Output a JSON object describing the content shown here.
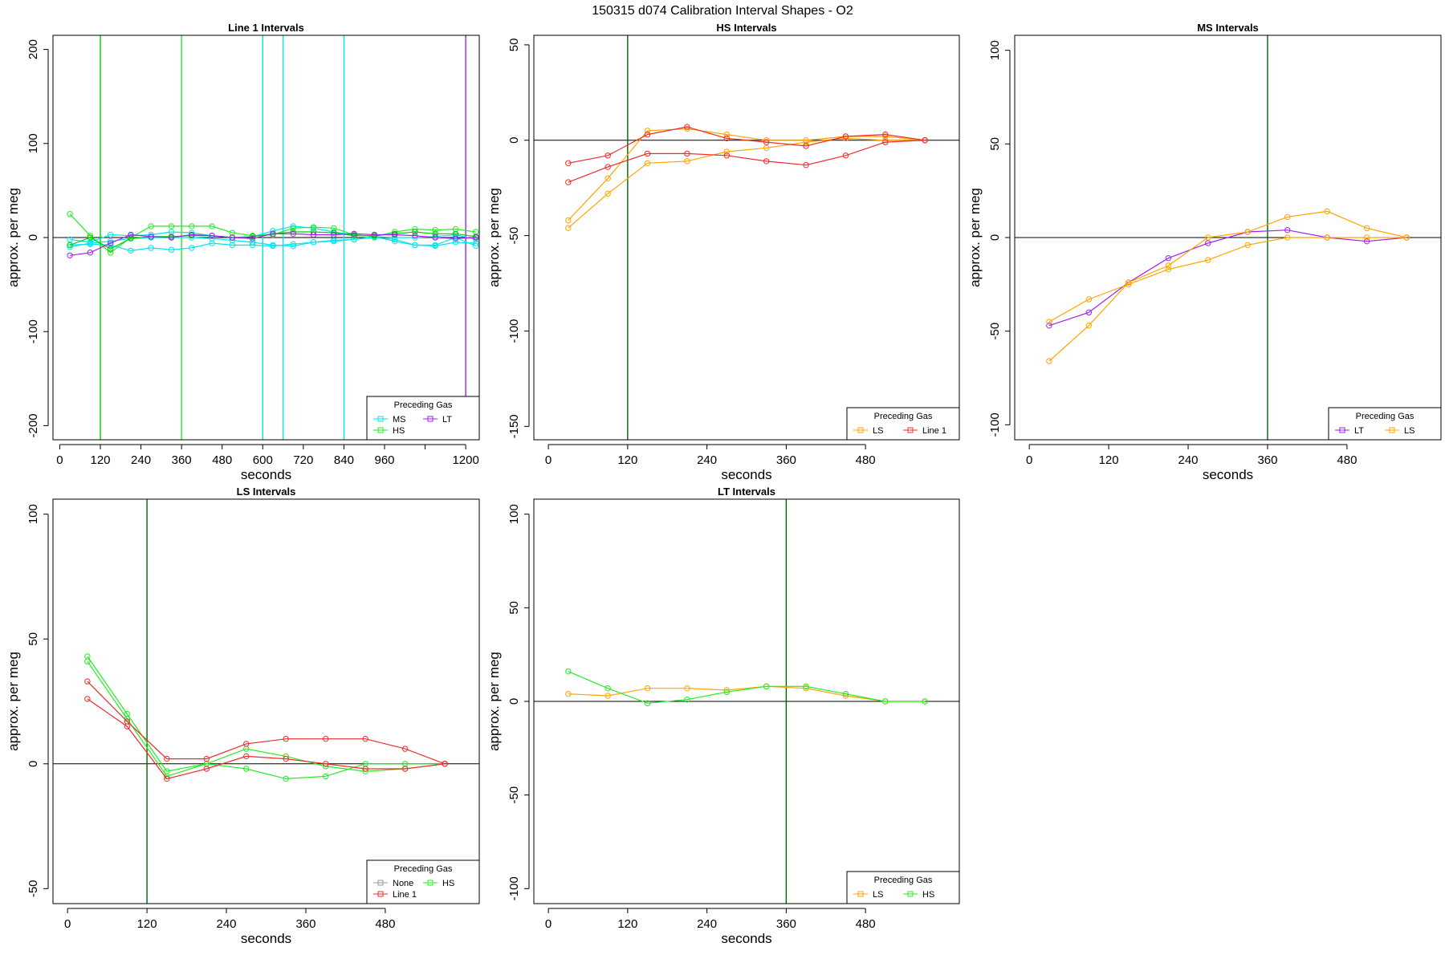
{
  "figure_title": "150315   d074   Calibration Interval Shapes - O2",
  "colors": {
    "MS": "#00e5ee",
    "HS": "#00cd00",
    "HS_bright": "#22ee22",
    "LT": "#a020f0",
    "LS": "#ffa500",
    "Line 1": "#ee2c2c",
    "None": "#999999",
    "axis": "#000000",
    "vline": "#006400"
  },
  "chart_data": [
    {
      "type": "line",
      "title": "Line 1 Intervals",
      "xlabel": "seconds",
      "ylabel": "approx. per meg",
      "xlim": [
        -20,
        1240
      ],
      "ylim": [
        -215,
        215
      ],
      "x_ticks": [
        0,
        120,
        240,
        360,
        480,
        600,
        720,
        840,
        960,
        1080,
        1200
      ],
      "x_tick_labels": [
        "0",
        "120",
        "240",
        "360",
        "480",
        "600",
        "720",
        "840",
        "960",
        "",
        "1200"
      ],
      "y_ticks": [
        -200,
        -100,
        0,
        100,
        200
      ],
      "y_tick_labels": [
        "-200",
        "-100",
        "0",
        "100",
        "200"
      ],
      "hline": 0,
      "vlines": [
        {
          "x": 120,
          "color_key": "HS"
        },
        {
          "x": 360,
          "color_key": "HS_bright"
        },
        {
          "x": 600,
          "color_key": "MS"
        },
        {
          "x": 660,
          "color_key": "MS"
        },
        {
          "x": 840,
          "color_key": "MS"
        },
        {
          "x": 1200,
          "color_key": "LT"
        }
      ],
      "legend_title": "Preceding Gas",
      "legend_position": "bottom-right",
      "legend": [
        [
          "MS",
          "LT"
        ],
        [
          "HS"
        ]
      ],
      "series": [
        {
          "name": "MS",
          "color_key": "MS",
          "x": [
            30,
            90,
            150,
            210,
            270,
            330,
            390,
            450,
            510,
            570,
            630,
            690,
            750,
            810,
            870,
            930,
            990,
            1050,
            1110,
            1170,
            1230
          ],
          "values": [
            -2,
            -5,
            3,
            2,
            3,
            6,
            5,
            2,
            0,
            1,
            7,
            12,
            10,
            6,
            3,
            1,
            0,
            0,
            1,
            3,
            -2
          ]
        },
        {
          "name": "MS",
          "color_key": "MS",
          "x": [
            30,
            90,
            150,
            210,
            270,
            330,
            390,
            450,
            510,
            570,
            630,
            690,
            750,
            810,
            870,
            930,
            990,
            1050,
            1110,
            1170,
            1230
          ],
          "values": [
            -8,
            -7,
            -8,
            -14,
            -11,
            -13,
            -11,
            -6,
            -8,
            -8,
            -9,
            -7,
            -5,
            -3,
            -2,
            1,
            -4,
            -8,
            -8,
            0,
            -9
          ]
        },
        {
          "name": "MS",
          "color_key": "MS",
          "x": [
            30,
            90,
            150,
            210,
            270,
            330,
            390,
            450,
            510,
            570,
            630,
            690,
            750,
            810,
            870,
            930,
            990,
            1050,
            1110,
            1170,
            1230
          ],
          "values": [
            -10,
            -6,
            -4,
            -1,
            0,
            0,
            0,
            -1,
            -3,
            -5,
            -8,
            -9,
            -5,
            -4,
            -2,
            0,
            -2,
            -8,
            -9,
            -5,
            -6
          ]
        },
        {
          "name": "HS",
          "color_key": "HS_bright",
          "x": [
            30,
            90,
            150,
            210,
            270,
            330,
            390,
            450,
            510,
            570,
            630,
            690,
            750,
            810,
            870,
            930,
            990,
            1050,
            1110,
            1170,
            1230
          ],
          "values": [
            25,
            2,
            -16,
            0,
            12,
            12,
            12,
            12,
            5,
            2,
            3,
            10,
            11,
            10,
            3,
            1,
            6,
            9,
            8,
            9,
            6
          ]
        },
        {
          "name": "HS",
          "color_key": "HS",
          "x": [
            30,
            90,
            150,
            210,
            270,
            330,
            390,
            450,
            510,
            570,
            630,
            690,
            750,
            810,
            870,
            930,
            990,
            1050,
            1110,
            1170,
            1230
          ],
          "values": [
            -8,
            0,
            -12,
            -1,
            1,
            1,
            2,
            2,
            0,
            1,
            4,
            6,
            6,
            5,
            2,
            2,
            4,
            6,
            4,
            4,
            1
          ]
        },
        {
          "name": "LT",
          "color_key": "LT",
          "x": [
            30,
            90,
            150,
            210,
            270,
            330,
            390,
            450,
            510,
            570,
            630,
            690,
            750,
            810,
            870,
            930,
            990,
            1050,
            1110,
            1170,
            1230
          ],
          "values": [
            -19,
            -16,
            -6,
            3,
            1,
            0,
            3,
            2,
            0,
            -1,
            4,
            4,
            3,
            3,
            4,
            3,
            3,
            2,
            0,
            -1,
            0
          ]
        }
      ]
    },
    {
      "type": "line",
      "title": "HS Intervals",
      "xlabel": "seconds",
      "ylabel": "approx. per meg",
      "xlim": [
        -22,
        622
      ],
      "ylim": [
        -157,
        55
      ],
      "x_ticks": [
        0,
        120,
        240,
        360,
        480
      ],
      "x_tick_labels": [
        "0",
        "120",
        "240",
        "360",
        "480"
      ],
      "y_ticks": [
        -150,
        -100,
        -50,
        0,
        50
      ],
      "y_tick_labels": [
        "-150",
        "-100",
        "-50",
        "0",
        "50"
      ],
      "hline": 0,
      "vlines": [
        {
          "x": 120,
          "color_key": "vline"
        }
      ],
      "legend_title": "Preceding Gas",
      "legend_position": "bottom-right",
      "legend": [
        [
          "LS",
          "Line 1"
        ]
      ],
      "series": [
        {
          "name": "LS",
          "color_key": "LS",
          "x": [
            30,
            90,
            150,
            210,
            270,
            330,
            390,
            450,
            510,
            570
          ],
          "values": [
            -42,
            -20,
            5,
            6,
            3,
            0,
            0,
            2,
            2,
            0
          ]
        },
        {
          "name": "LS",
          "color_key": "LS",
          "x": [
            30,
            90,
            150,
            210,
            270,
            330,
            390,
            450,
            510,
            570
          ],
          "values": [
            -46,
            -28,
            -12,
            -11,
            -6,
            -4,
            -1,
            1,
            0,
            0
          ]
        },
        {
          "name": "Line 1",
          "color_key": "Line 1",
          "x": [
            30,
            90,
            150,
            210,
            270,
            330,
            390,
            450,
            510,
            570
          ],
          "values": [
            -12,
            -8,
            3,
            7,
            1,
            -1,
            -3,
            2,
            3,
            0
          ]
        },
        {
          "name": "Line 1",
          "color_key": "Line 1",
          "x": [
            30,
            90,
            150,
            210,
            270,
            330,
            390,
            450,
            510,
            570
          ],
          "values": [
            -22,
            -14,
            -7,
            -7,
            -8,
            -11,
            -13,
            -8,
            -1,
            0
          ]
        }
      ]
    },
    {
      "type": "line",
      "title": "MS Intervals",
      "xlabel": "seconds",
      "ylabel": "approx. per meg",
      "xlim": [
        -22,
        622
      ],
      "ylim": [
        -108,
        108
      ],
      "x_ticks": [
        0,
        120,
        240,
        360,
        480
      ],
      "x_tick_labels": [
        "0",
        "120",
        "240",
        "360",
        "480"
      ],
      "y_ticks": [
        -100,
        -50,
        0,
        50,
        100
      ],
      "y_tick_labels": [
        "-100",
        "-50",
        "0",
        "50",
        "100"
      ],
      "hline": 0,
      "vlines": [
        {
          "x": 360,
          "color_key": "vline"
        }
      ],
      "legend_title": "Preceding Gas",
      "legend_position": "bottom-right",
      "legend": [
        [
          "LT",
          "LS"
        ]
      ],
      "series": [
        {
          "name": "LT",
          "color_key": "LT",
          "x": [
            30,
            90,
            150,
            210,
            270,
            330,
            390,
            450,
            510,
            570
          ],
          "values": [
            -47,
            -40,
            -24,
            -11,
            -3,
            3,
            4,
            0,
            -2,
            0
          ]
        },
        {
          "name": "LS",
          "color_key": "LS",
          "x": [
            30,
            90,
            150,
            210,
            270,
            330,
            390,
            450,
            510,
            570
          ],
          "values": [
            -45,
            -33,
            -25,
            -17,
            -12,
            -4,
            0,
            0,
            0,
            0
          ]
        },
        {
          "name": "LS",
          "color_key": "LS",
          "x": [
            30,
            90,
            150,
            210,
            270,
            330,
            390,
            450,
            510,
            570
          ],
          "values": [
            -66,
            -47,
            -24,
            -15,
            0,
            3,
            11,
            14,
            5,
            0
          ]
        }
      ]
    },
    {
      "type": "line",
      "title": "LS Intervals",
      "xlabel": "seconds",
      "ylabel": "approx. per meg",
      "xlim": [
        -22,
        622
      ],
      "ylim": [
        -56,
        106
      ],
      "x_ticks": [
        0,
        120,
        240,
        360,
        480
      ],
      "x_tick_labels": [
        "0",
        "120",
        "240",
        "360",
        "480"
      ],
      "y_ticks": [
        -50,
        0,
        50,
        100
      ],
      "y_tick_labels": [
        "-50",
        "0",
        "50",
        "100"
      ],
      "hline": 0,
      "vlines": [
        {
          "x": 120,
          "color_key": "vline"
        }
      ],
      "legend_title": "Preceding Gas",
      "legend_position": "bottom-right",
      "legend": [
        [
          "None",
          "HS"
        ],
        [
          "Line 1"
        ]
      ],
      "series": [
        {
          "name": "HS",
          "color_key": "HS_bright",
          "x": [
            30,
            90,
            150,
            210,
            270,
            330,
            390,
            450,
            510,
            570
          ],
          "values": [
            43,
            20,
            -3,
            0,
            6,
            3,
            -1,
            -3,
            -2,
            0
          ]
        },
        {
          "name": "HS",
          "color_key": "HS_bright",
          "x": [
            30,
            90,
            150,
            210,
            270,
            330,
            390,
            450,
            510,
            570
          ],
          "values": [
            41,
            18,
            -5,
            0,
            -2,
            -6,
            -5,
            0,
            0,
            0
          ]
        },
        {
          "name": "Line 1",
          "color_key": "Line 1",
          "x": [
            30,
            90,
            150,
            210,
            270,
            330,
            390,
            450,
            510,
            570
          ],
          "values": [
            33,
            17,
            2,
            2,
            8,
            10,
            10,
            10,
            6,
            0
          ]
        },
        {
          "name": "Line 1",
          "color_key": "Line 1",
          "x": [
            30,
            90,
            150,
            210,
            270,
            330,
            390,
            450,
            510,
            570
          ],
          "values": [
            26,
            15,
            -6,
            -2,
            3,
            2,
            0,
            -2,
            -2,
            0
          ]
        }
      ]
    },
    {
      "type": "line",
      "title": "LT Intervals",
      "xlabel": "seconds",
      "ylabel": "approx. per meg",
      "xlim": [
        -22,
        622
      ],
      "ylim": [
        -108,
        108
      ],
      "x_ticks": [
        0,
        120,
        240,
        360,
        480
      ],
      "x_tick_labels": [
        "0",
        "120",
        "240",
        "360",
        "480"
      ],
      "y_ticks": [
        -100,
        -50,
        0,
        50,
        100
      ],
      "y_tick_labels": [
        "-100",
        "-50",
        "0",
        "50",
        "100"
      ],
      "hline": 0,
      "vlines": [
        {
          "x": 360,
          "color_key": "vline"
        }
      ],
      "legend_title": "Preceding Gas",
      "legend_position": "bottom-right",
      "legend": [
        [
          "LS",
          "HS"
        ]
      ],
      "series": [
        {
          "name": "LS",
          "color_key": "LS",
          "x": [
            30,
            90,
            150,
            210,
            270,
            330,
            390,
            450,
            510,
            570
          ],
          "values": [
            4,
            3,
            7,
            7,
            6,
            8,
            7,
            3,
            0,
            0
          ]
        },
        {
          "name": "HS",
          "color_key": "HS_bright",
          "x": [
            30,
            90,
            150,
            210,
            270,
            330,
            390,
            450,
            510,
            570
          ],
          "values": [
            16,
            7,
            -1,
            1,
            5,
            8,
            8,
            4,
            0,
            0
          ]
        }
      ]
    }
  ]
}
